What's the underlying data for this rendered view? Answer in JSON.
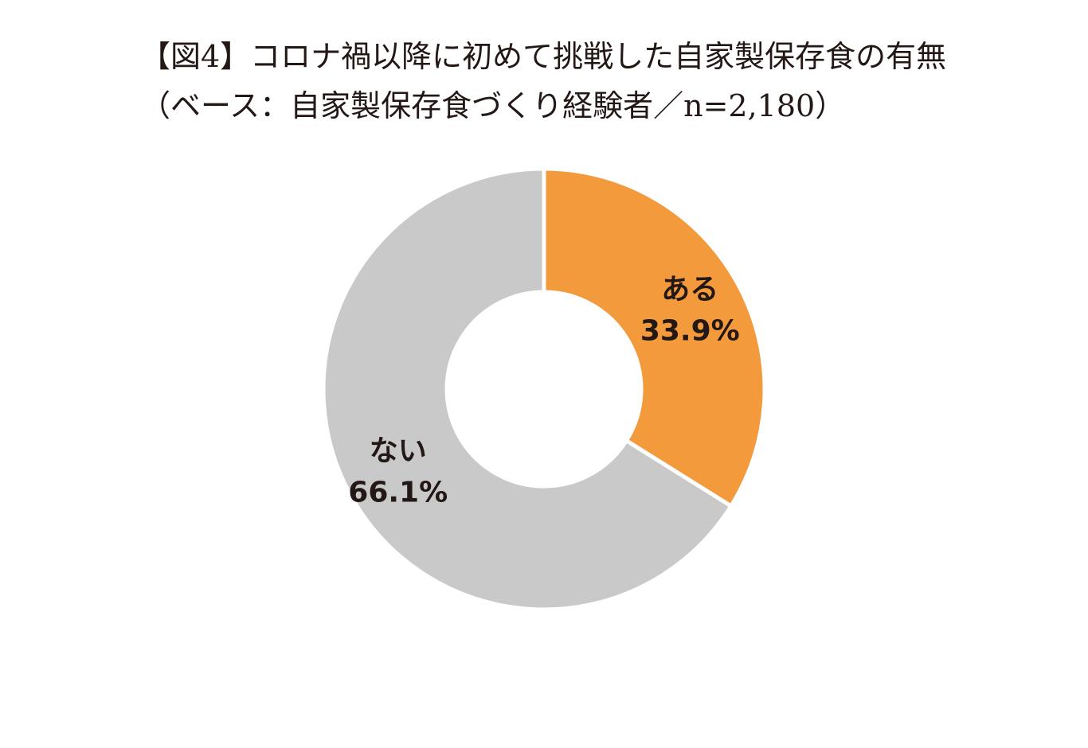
{
  "chart_data": {
    "type": "pie",
    "title": "【図4】コロナ禍以降に初めて挑戦した自家製保存食の有無",
    "subtitle": "（ベース：自家製保存食づくり経験者／n=2,180）",
    "categories": [
      "ある",
      "ない"
    ],
    "values": [
      33.9,
      66.1
    ],
    "value_labels": [
      "33.9%",
      "66.1%"
    ],
    "colors": [
      "#F29A3C",
      "#C9C9CA"
    ],
    "donut": true,
    "legend": "none"
  }
}
